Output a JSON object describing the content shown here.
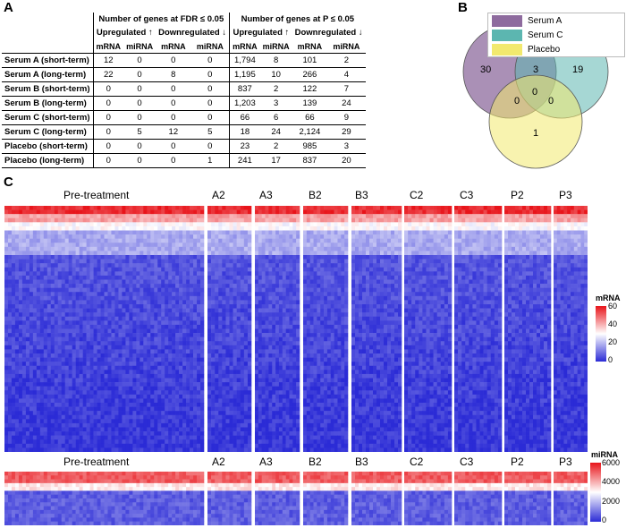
{
  "panels": {
    "a": "A",
    "b": "B",
    "c": "C"
  },
  "table": {
    "group_fdr": "Number of genes at FDR ≤ 0.05",
    "group_p": "Number of genes at P ≤ 0.05",
    "up": "Upregulated ↑",
    "down": "Downregulated ↓",
    "mrna": "mRNA",
    "mirna": "miRNA",
    "rows": [
      {
        "name": "Serum A (short-term)",
        "v": [
          "12",
          "0",
          "0",
          "0",
          "1,794",
          "8",
          "101",
          "2"
        ]
      },
      {
        "name": "Serum A (long-term)",
        "v": [
          "22",
          "0",
          "8",
          "0",
          "1,195",
          "10",
          "266",
          "4"
        ]
      },
      {
        "name": "Serum B (short-term)",
        "v": [
          "0",
          "0",
          "0",
          "0",
          "837",
          "2",
          "122",
          "7"
        ]
      },
      {
        "name": "Serum B (long-term)",
        "v": [
          "0",
          "0",
          "0",
          "0",
          "1,203",
          "3",
          "139",
          "24"
        ]
      },
      {
        "name": "Serum C (short-term)",
        "v": [
          "0",
          "0",
          "0",
          "0",
          "66",
          "6",
          "66",
          "9"
        ]
      },
      {
        "name": "Serum C (long-term)",
        "v": [
          "0",
          "5",
          "12",
          "5",
          "18",
          "24",
          "2,124",
          "29"
        ]
      },
      {
        "name": "Placebo (short-term)",
        "v": [
          "0",
          "0",
          "0",
          "0",
          "23",
          "2",
          "985",
          "3"
        ]
      },
      {
        "name": "Placebo (long-term)",
        "v": [
          "0",
          "0",
          "0",
          "1",
          "241",
          "17",
          "837",
          "20"
        ]
      }
    ]
  },
  "venn": {
    "legend": [
      {
        "label": "Serum A",
        "color": "#8e6b9e"
      },
      {
        "label": "Serum C",
        "color": "#5cb6b0"
      },
      {
        "label": "Placebo",
        "color": "#f2e96e"
      }
    ],
    "counts": {
      "a_only": "30",
      "a_c": "3",
      "c_only": "19",
      "a_p": "0",
      "all": "0",
      "c_p": "0",
      "p_only": "1"
    }
  },
  "heatmaps": {
    "groups": [
      "Pre-treatment",
      "A2",
      "A3",
      "B2",
      "B3",
      "C2",
      "C3",
      "P2",
      "P3"
    ],
    "mrna": {
      "title": "mRNA",
      "ticks": [
        "60",
        "40",
        "20",
        "0"
      ],
      "range": [
        0,
        60
      ]
    },
    "mirna": {
      "title": "miRNA",
      "ticks": [
        "6000",
        "4000",
        "2000",
        "0"
      ],
      "range": [
        0,
        6000
      ]
    },
    "colors": {
      "low": "#2b2bd6",
      "mid": "#ffffff",
      "high": "#e8141a"
    }
  }
}
